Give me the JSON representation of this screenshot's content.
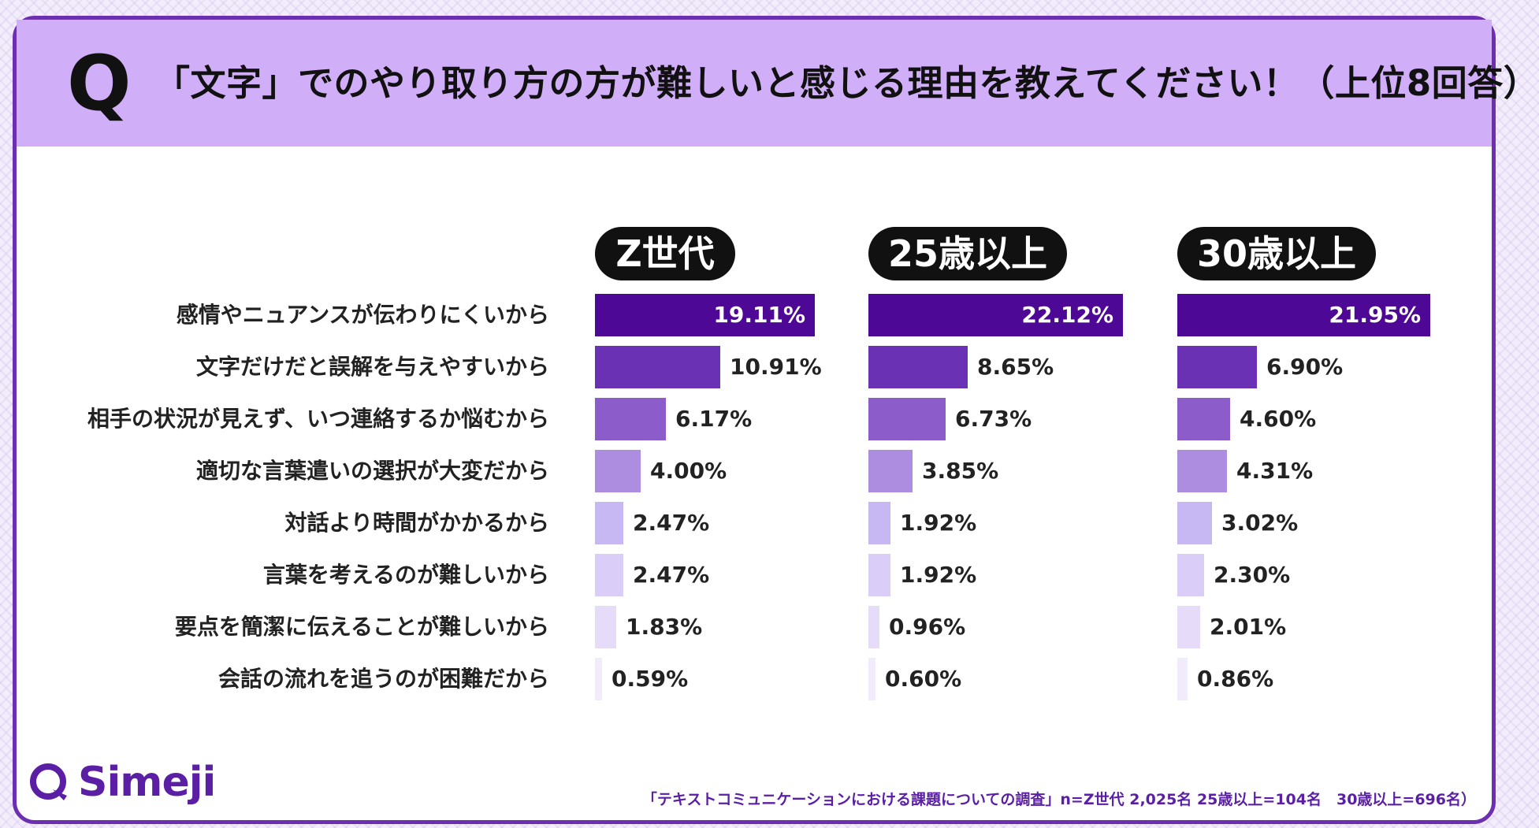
{
  "question": {
    "mark": "Q",
    "title": "「文字」でのやり取り方の方が難しいと感じる理由を教えてください！（上位8回答）"
  },
  "chart_data": {
    "type": "bar",
    "orientation": "horizontal",
    "title": "「文字」でのやり取り方の方が難しいと感じる理由を教えてください！（上位8回答）",
    "categories": [
      "感情やニュアンスが伝わりにくいから",
      "文字だけだと誤解を与えやすいから",
      "相手の状況が見えず、いつ連絡するか悩むから",
      "適切な言葉遣いの選択が大変だから",
      "対話より時間がかかるから",
      "言葉を考えるのが難しいから",
      "要点を簡潔に伝えることが難しいから",
      "会話の流れを追うのが困難だから"
    ],
    "series": [
      {
        "name": "Z世代",
        "values": [
          19.11,
          10.91,
          6.17,
          4.0,
          2.47,
          2.47,
          1.83,
          0.59
        ],
        "labels": [
          "19.11%",
          "10.91%",
          "6.17%",
          "4.00%",
          "2.47%",
          "2.47%",
          "1.83%",
          "0.59%"
        ]
      },
      {
        "name": "25歳以上",
        "values": [
          22.12,
          8.65,
          6.73,
          3.85,
          1.92,
          1.92,
          0.96,
          0.6
        ],
        "labels": [
          "22.12%",
          "8.65%",
          "6.73%",
          "3.85%",
          "1.92%",
          "1.92%",
          "0.96%",
          "0.60%"
        ]
      },
      {
        "name": "30歳以上",
        "values": [
          21.95,
          6.9,
          4.6,
          4.31,
          3.02,
          2.3,
          2.01,
          0.86
        ],
        "labels": [
          "21.95%",
          "6.90%",
          "4.60%",
          "4.31%",
          "3.02%",
          "2.30%",
          "2.01%",
          "0.86%"
        ]
      }
    ],
    "xlim": [
      0,
      22.12
    ],
    "unit": "%"
  },
  "colors": {
    "header_bg": "#d1aef8",
    "border": "#6d2fb2",
    "rank_colors": [
      "#4d0896",
      "#6b31b4",
      "#8c5cca",
      "#ad8de0",
      "#c7b7f3",
      "#dacdf8",
      "#e6dcfa",
      "#f1ebfc"
    ]
  },
  "brand": {
    "name": "Simeji",
    "icon": "speech-bubble-q-icon"
  },
  "footnote": "「テキストコミュニケーションにおける課題についての調査」n=Z世代 2,025名 25歳以上=104名　30歳以上=696名）"
}
